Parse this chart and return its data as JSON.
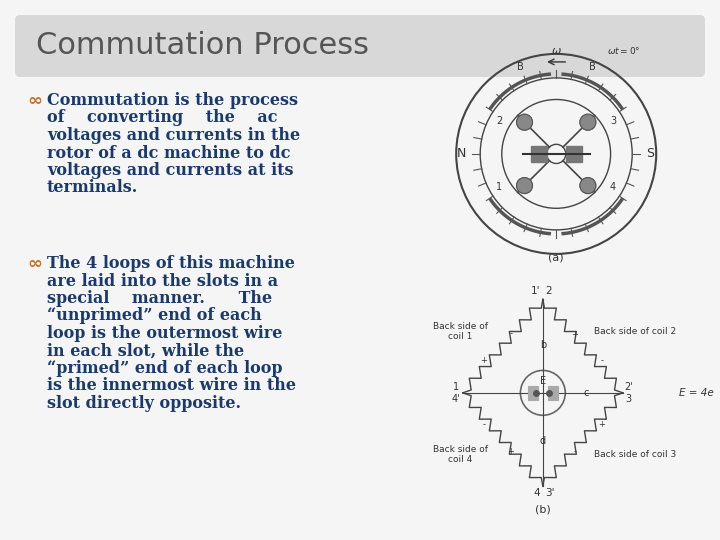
{
  "title": "Commutation Process",
  "title_fontsize": 22,
  "title_color": "#555555",
  "title_box_color": "#d8d8d8",
  "background_color": "#ffffff",
  "slide_bg_color": "#f5f5f5",
  "slide_border_color": "#bbbbbb",
  "bullet_color": "#c87020",
  "text_color": "#1a3a6e",
  "text_fontsize": 11.5,
  "bullet1_lines": [
    "Commutation is the process",
    "of    converting    the    ac",
    "voltages and currents in the",
    "rotor of a dc machine to dc",
    "voltages and currents at its",
    "terminals."
  ],
  "bullet2_lines": [
    "The 4 loops of this machine",
    "are laid into the slots in a",
    "special    manner.      The",
    "“unprimed” end of each",
    "loop is the outermost wire",
    "in each slot, while the",
    "“primed” end of each loop",
    "is the innermost wire in the",
    "slot directly opposite."
  ]
}
